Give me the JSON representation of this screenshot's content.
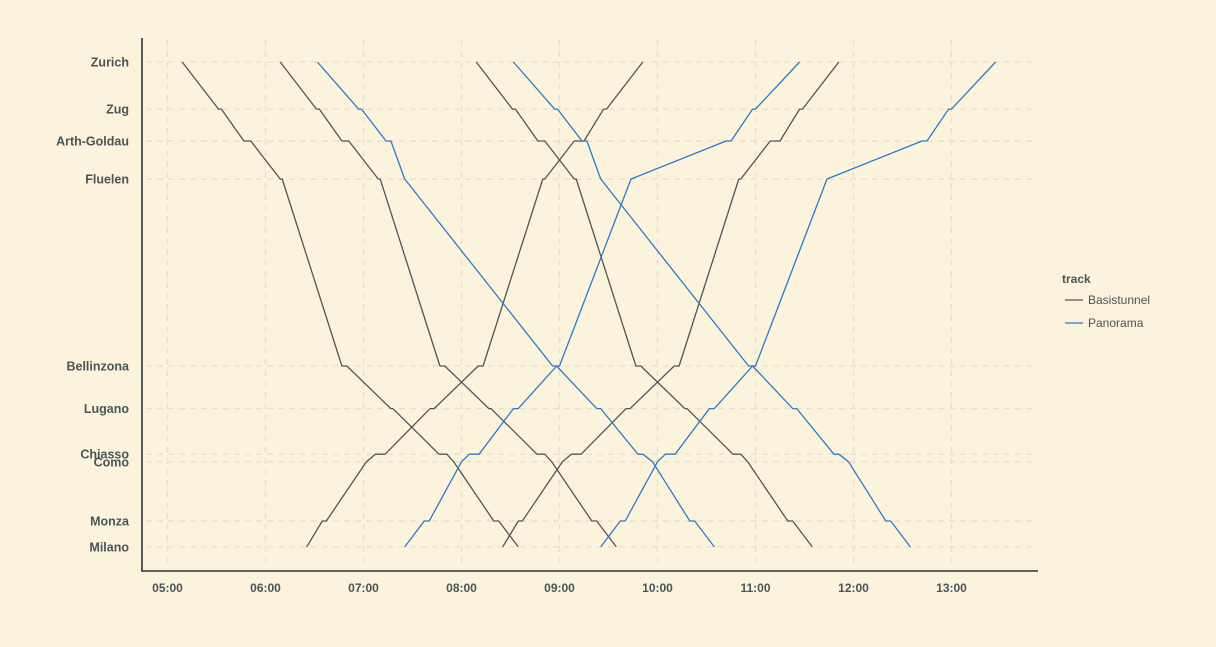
{
  "chart_data": {
    "type": "line",
    "title": "",
    "xlabel": "",
    "ylabel": "",
    "x_unit": "hours",
    "xlim": [
      5.0,
      13.85
    ],
    "x_ticks": [
      {
        "value": 5,
        "label": "05:00"
      },
      {
        "value": 6,
        "label": "06:00"
      },
      {
        "value": 7,
        "label": "07:00"
      },
      {
        "value": 8,
        "label": "08:00"
      },
      {
        "value": 9,
        "label": "09:00"
      },
      {
        "value": 10,
        "label": "10:00"
      },
      {
        "value": 11,
        "label": "11:00"
      },
      {
        "value": 12,
        "label": "12:00"
      },
      {
        "value": 13,
        "label": "13:00"
      }
    ],
    "stations": [
      {
        "name": "Zurich",
        "km": 0
      },
      {
        "name": "Zug",
        "km": 31
      },
      {
        "name": "Arth-Goldau",
        "km": 52
      },
      {
        "name": "Fluelen",
        "km": 77
      },
      {
        "name": "Bellinzona",
        "km": 200
      },
      {
        "name": "Lugano",
        "km": 228
      },
      {
        "name": "Chiasso",
        "km": 258
      },
      {
        "name": "Como",
        "km": 263
      },
      {
        "name": "Monza",
        "km": 302
      },
      {
        "name": "Milano",
        "km": 319
      }
    ],
    "grid": true,
    "legend": {
      "title": "track",
      "position": "right",
      "entries": [
        {
          "name": "Basistunnel",
          "color": "#555555"
        },
        {
          "name": "Panorama",
          "color": "#2f79c9"
        }
      ]
    },
    "series": [
      {
        "track": "Basistunnel",
        "direction": "southbound",
        "stops": [
          [
            "Zurich",
            5.15,
            5.15
          ],
          [
            "Zug",
            5.52,
            5.55
          ],
          [
            "Arth-Goldau",
            5.78,
            5.85
          ],
          [
            "Fluelen",
            6.15,
            6.17
          ],
          [
            "Bellinzona",
            6.78,
            6.83
          ],
          [
            "Lugano",
            7.28,
            7.3
          ],
          [
            "Chiasso",
            7.77,
            7.85
          ],
          [
            "Como",
            7.92,
            7.92
          ],
          [
            "Monza",
            8.33,
            8.38
          ],
          [
            "Milano",
            8.58,
            8.58
          ]
        ]
      },
      {
        "track": "Basistunnel",
        "direction": "southbound",
        "stops": [
          [
            "Zurich",
            6.15,
            6.15
          ],
          [
            "Zug",
            6.52,
            6.55
          ],
          [
            "Arth-Goldau",
            6.78,
            6.85
          ],
          [
            "Fluelen",
            7.15,
            7.17
          ],
          [
            "Bellinzona",
            7.78,
            7.83
          ],
          [
            "Lugano",
            8.28,
            8.3
          ],
          [
            "Chiasso",
            8.77,
            8.85
          ],
          [
            "Como",
            8.92,
            8.92
          ],
          [
            "Monza",
            9.33,
            9.38
          ],
          [
            "Milano",
            9.58,
            9.58
          ]
        ]
      },
      {
        "track": "Basistunnel",
        "direction": "southbound",
        "stops": [
          [
            "Zurich",
            8.15,
            8.15
          ],
          [
            "Zug",
            8.52,
            8.55
          ],
          [
            "Arth-Goldau",
            8.78,
            8.85
          ],
          [
            "Fluelen",
            9.15,
            9.17
          ],
          [
            "Bellinzona",
            9.78,
            9.83
          ],
          [
            "Lugano",
            10.28,
            10.3
          ],
          [
            "Chiasso",
            10.77,
            10.85
          ],
          [
            "Como",
            10.92,
            10.92
          ],
          [
            "Monza",
            11.33,
            11.38
          ],
          [
            "Milano",
            11.58,
            11.58
          ]
        ]
      },
      {
        "track": "Basistunnel",
        "direction": "northbound",
        "stops": [
          [
            "Milano",
            6.42,
            6.42
          ],
          [
            "Monza",
            6.58,
            6.62
          ],
          [
            "Como",
            7.03,
            7.03
          ],
          [
            "Chiasso",
            7.12,
            7.22
          ],
          [
            "Lugano",
            7.68,
            7.72
          ],
          [
            "Bellinzona",
            8.17,
            8.22
          ],
          [
            "Fluelen",
            8.83,
            8.85
          ],
          [
            "Arth-Goldau",
            9.15,
            9.25
          ],
          [
            "Zug",
            9.45,
            9.48
          ],
          [
            "Zurich",
            9.85,
            9.85
          ]
        ]
      },
      {
        "track": "Basistunnel",
        "direction": "northbound",
        "stops": [
          [
            "Milano",
            8.42,
            8.42
          ],
          [
            "Monza",
            8.58,
            8.62
          ],
          [
            "Como",
            9.03,
            9.03
          ],
          [
            "Chiasso",
            9.12,
            9.22
          ],
          [
            "Lugano",
            9.68,
            9.72
          ],
          [
            "Bellinzona",
            10.17,
            10.22
          ],
          [
            "Fluelen",
            10.83,
            10.85
          ],
          [
            "Arth-Goldau",
            11.15,
            11.25
          ],
          [
            "Zug",
            11.45,
            11.48
          ],
          [
            "Zurich",
            11.85,
            11.85
          ]
        ]
      },
      {
        "track": "Panorama",
        "direction": "southbound",
        "stops": [
          [
            "Zurich",
            6.53,
            6.53
          ],
          [
            "Zug",
            6.95,
            6.98
          ],
          [
            "Arth-Goldau",
            7.23,
            7.28
          ],
          [
            "Fluelen",
            7.42,
            7.42
          ],
          [
            "Bellinzona",
            8.93,
            8.97
          ],
          [
            "Lugano",
            9.38,
            9.42
          ],
          [
            "Chiasso",
            9.8,
            9.85
          ],
          [
            "Como",
            9.95,
            9.95
          ],
          [
            "Monza",
            10.33,
            10.38
          ],
          [
            "Milano",
            10.58,
            10.58
          ]
        ]
      },
      {
        "track": "Panorama",
        "direction": "southbound",
        "stops": [
          [
            "Zurich",
            8.53,
            8.53
          ],
          [
            "Zug",
            8.95,
            8.98
          ],
          [
            "Arth-Goldau",
            9.23,
            9.28
          ],
          [
            "Fluelen",
            9.42,
            9.42
          ],
          [
            "Bellinzona",
            10.93,
            10.97
          ],
          [
            "Lugano",
            11.38,
            11.42
          ],
          [
            "Chiasso",
            11.8,
            11.85
          ],
          [
            "Como",
            11.95,
            11.95
          ],
          [
            "Monza",
            12.33,
            12.38
          ],
          [
            "Milano",
            12.58,
            12.58
          ]
        ]
      },
      {
        "track": "Panorama",
        "direction": "northbound",
        "stops": [
          [
            "Milano",
            7.42,
            7.42
          ],
          [
            "Monza",
            7.62,
            7.67
          ],
          [
            "Como",
            8.0,
            8.0
          ],
          [
            "Chiasso",
            8.08,
            8.18
          ],
          [
            "Lugano",
            8.53,
            8.58
          ],
          [
            "Bellinzona",
            8.97,
            9.0
          ],
          [
            "Fluelen",
            9.73,
            9.73
          ],
          [
            "Arth-Goldau",
            10.7,
            10.75
          ],
          [
            "Zug",
            10.97,
            11.0
          ],
          [
            "Zurich",
            11.45,
            11.45
          ]
        ]
      },
      {
        "track": "Panorama",
        "direction": "northbound",
        "stops": [
          [
            "Milano",
            9.42,
            9.42
          ],
          [
            "Monza",
            9.62,
            9.67
          ],
          [
            "Como",
            10.0,
            10.0
          ],
          [
            "Chiasso",
            10.08,
            10.18
          ],
          [
            "Lugano",
            10.53,
            10.58
          ],
          [
            "Bellinzona",
            10.97,
            11.0
          ],
          [
            "Fluelen",
            11.73,
            11.73
          ],
          [
            "Arth-Goldau",
            12.7,
            12.75
          ],
          [
            "Zug",
            12.97,
            13.0
          ],
          [
            "Zurich",
            13.45,
            13.45
          ]
        ]
      }
    ]
  }
}
